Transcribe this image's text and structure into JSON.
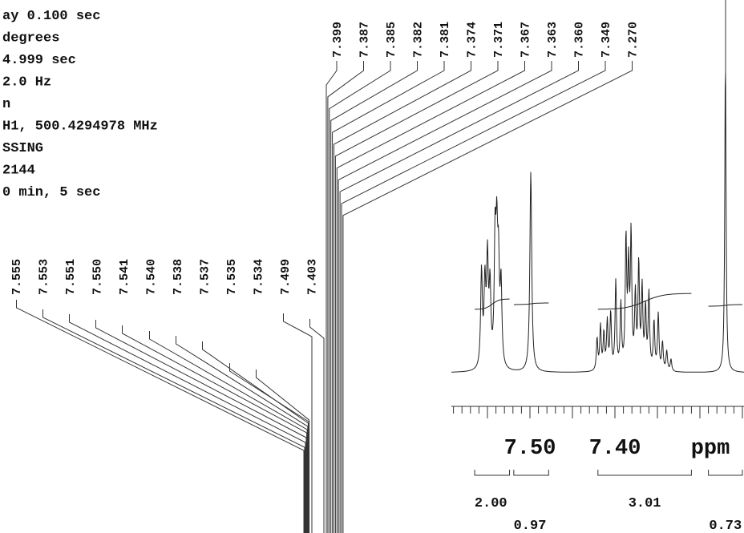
{
  "parameters": [
    "ay 0.100 sec",
    " degrees",
    "4.999 sec",
    "2.0 Hz",
    "n",
    "H1, 500.4294978 MHz",
    "SSING",
    "2144",
    "0 min, 5 sec"
  ],
  "chart_data": {
    "type": "line",
    "title": "",
    "xlabel": "ppm",
    "ylabel": "",
    "x_reversed": true,
    "axis_tick_labels": [
      "7.50",
      "7.40"
    ],
    "axis_unit": "ppm",
    "peak_labels_upper": [
      "7.399",
      "7.387",
      "7.385",
      "7.382",
      "7.381",
      "7.374",
      "7.371",
      "7.367",
      "7.363",
      "7.360",
      "7.349",
      "7.270"
    ],
    "peak_labels_lower": [
      "7.555",
      "7.553",
      "7.551",
      "7.550",
      "7.541",
      "7.540",
      "7.538",
      "7.537",
      "7.535",
      "7.534",
      "7.499",
      "7.403"
    ],
    "integrals": [
      {
        "value": "2.00",
        "from": 7.565,
        "to": 7.524
      },
      {
        "value": "0.97",
        "from": 7.519,
        "to": 7.478
      },
      {
        "value": "3.01",
        "from": 7.42,
        "to": 7.31
      },
      {
        "value": "0.73",
        "from": 7.29,
        "to": 7.25
      }
    ],
    "integral_curve_color": "#222222",
    "grid": false,
    "legend": "none"
  }
}
